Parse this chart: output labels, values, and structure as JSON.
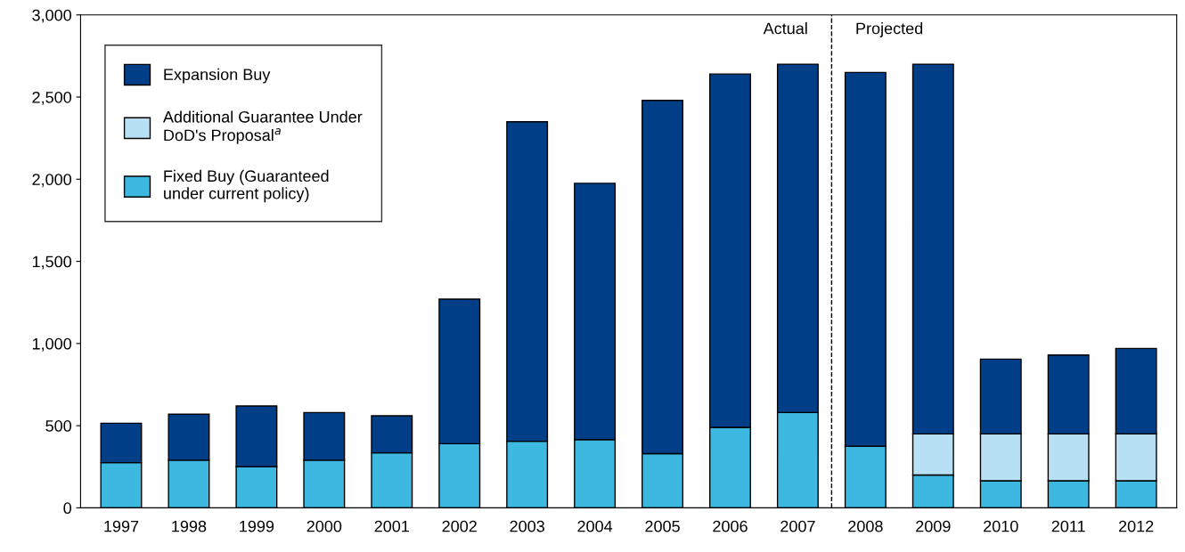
{
  "chart_data": {
    "type": "bar",
    "stacked": true,
    "categories": [
      "1997",
      "1998",
      "1999",
      "2000",
      "2001",
      "2002",
      "2003",
      "2004",
      "2005",
      "2006",
      "2007",
      "2008",
      "2009",
      "2010",
      "2011",
      "2012"
    ],
    "series": [
      {
        "name": "Fixed Buy (Guaranteed under current policy)",
        "color": "#3db8e0",
        "values": [
          275,
          290,
          250,
          290,
          335,
          390,
          405,
          415,
          330,
          490,
          580,
          375,
          200,
          165,
          165,
          165
        ]
      },
      {
        "name": "Additional Guarantee Under DoD's Proposal$^{a}$",
        "color": "#b8e0f5",
        "values": [
          null,
          null,
          null,
          null,
          null,
          null,
          null,
          null,
          null,
          null,
          null,
          null,
          250,
          285,
          285,
          285
        ]
      },
      {
        "name": "Expansion Buy",
        "color": "#003f87",
        "values": [
          240,
          280,
          370,
          290,
          225,
          880,
          1945,
          1560,
          2150,
          2150,
          2120,
          2275,
          2250,
          455,
          480,
          520
        ]
      }
    ],
    "ylim": [
      0,
      3000
    ],
    "yticks": [
      {
        "value": 0,
        "label": "0"
      },
      {
        "value": 500,
        "label": "500"
      },
      {
        "value": 1000,
        "label": "1,000"
      },
      {
        "value": 1500,
        "label": "1,500"
      },
      {
        "value": 2000,
        "label": "2,000"
      },
      {
        "value": 2500,
        "label": "2,500"
      },
      {
        "value": 3000,
        "label": "3,000"
      }
    ],
    "annotations": [
      "Actual",
      "Projected"
    ],
    "grid": false,
    "legend": "top left"
  }
}
